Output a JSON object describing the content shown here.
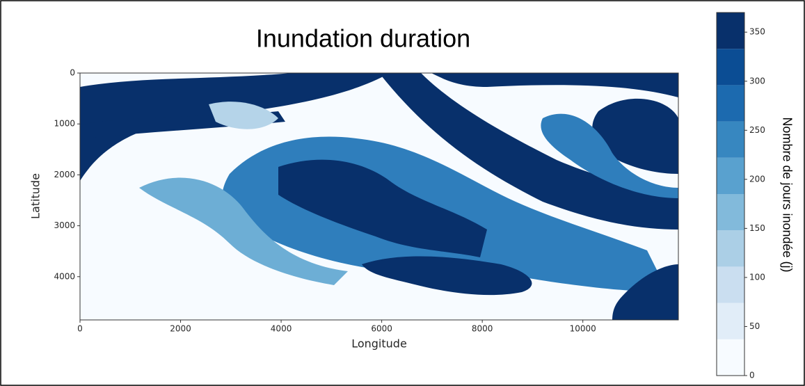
{
  "chart_data": {
    "type": "heatmap",
    "title": "Inundation duration",
    "x_label": "Longitude",
    "y_label": "Latitude",
    "xlim": [
      0,
      11900
    ],
    "ylim": [
      4850,
      0
    ],
    "xticks": [
      0,
      2000,
      4000,
      6000,
      8000,
      10000
    ],
    "yticks": [
      0,
      1000,
      2000,
      3000,
      4000
    ],
    "colorbar": {
      "label": "Nombre de jours inondée (j)",
      "lim": [
        0,
        370
      ],
      "ticks": [
        0,
        50,
        100,
        150,
        200,
        250,
        300,
        350
      ],
      "levels": [
        0,
        37,
        74,
        111,
        148,
        185,
        222,
        259,
        296,
        333,
        370
      ],
      "colors": [
        "#f7fbff",
        "#e1edf8",
        "#cadef0",
        "#abcfe6",
        "#82badb",
        "#59a1cf",
        "#3787c0",
        "#1c6aaf",
        "#0b4d94",
        "#08306b"
      ]
    }
  }
}
